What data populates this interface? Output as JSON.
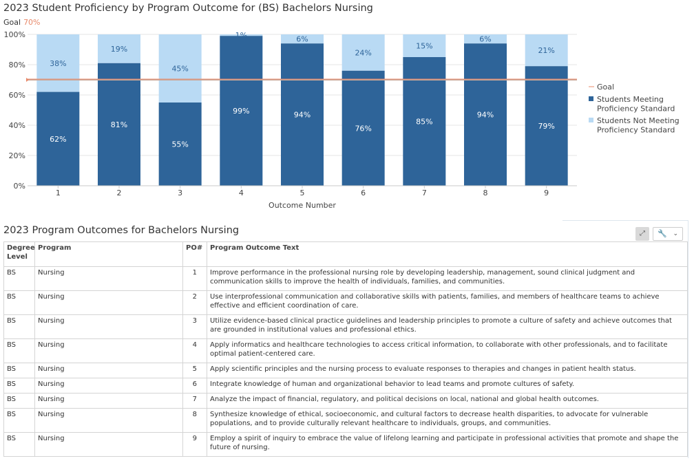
{
  "chart": {
    "title": "2023 Student Proficiency by Program Outcome for (BS) Bachelors Nursing",
    "goal_caption_label": "Goal",
    "goal_caption_value": "70%",
    "colors": {
      "meeting": "#2e6499",
      "not_meeting": "#b9daf4",
      "goal": "#e8896a",
      "grid": "#e6e6e6"
    }
  },
  "chart_data": {
    "type": "bar",
    "stacked": true,
    "categories": [
      "1",
      "2",
      "3",
      "4",
      "5",
      "6",
      "7",
      "8",
      "9"
    ],
    "series": [
      {
        "name": "Students Meeting Proficiency Standard",
        "values": [
          62,
          81,
          55,
          99,
          94,
          76,
          85,
          94,
          79
        ],
        "labels": [
          "62%",
          "81%",
          "55%",
          "99%",
          "94%",
          "76%",
          "85%",
          "94%",
          "79%"
        ]
      },
      {
        "name": "Students Not Meeting Proficiency Standard",
        "values": [
          38,
          19,
          45,
          1,
          6,
          24,
          15,
          6,
          21
        ],
        "labels": [
          "38%",
          "19%",
          "45%",
          "1%",
          "6%",
          "24%",
          "15%",
          "6%",
          "21%"
        ]
      }
    ],
    "goal": {
      "name": "Goal",
      "value": 70
    },
    "xlabel": "Outcome Number",
    "ylabel": "",
    "ylim": [
      0,
      100
    ],
    "yticks": [
      0,
      20,
      40,
      60,
      80,
      100
    ],
    "ytick_labels": [
      "0%",
      "20%",
      "40%",
      "60%",
      "80%",
      "100%"
    ],
    "legend_items": [
      {
        "key": "goal",
        "lines": [
          "Goal"
        ]
      },
      {
        "key": "meeting",
        "lines": [
          "Students Meeting",
          "Proficiency Standard"
        ]
      },
      {
        "key": "not_meeting",
        "lines": [
          "Students Not Meeting",
          "Proficiency Standard"
        ]
      }
    ],
    "legend_position": "right",
    "grid": true
  },
  "table": {
    "title": "2023 Program Outcomes for Bachelors Nursing",
    "tools": {
      "expand_icon": "⤢",
      "wrench_icon": "🔧",
      "chevron_icon": "⌄"
    },
    "headers": {
      "degree": "Degree Level",
      "program": "Program",
      "po": "PO#",
      "text": "Program Outcome Text"
    },
    "rows": [
      {
        "degree": "BS",
        "program": "Nursing",
        "po": "1",
        "text": "Improve performance in the professional nursing role by developing leadership, management, sound clinical judgment and communication skills to improve the health of individuals, families, and communities."
      },
      {
        "degree": "BS",
        "program": "Nursing",
        "po": "2",
        "text": "Use interprofessional communication and collaborative skills with patients, families, and members of healthcare teams to achieve effective and efficient coordination of care."
      },
      {
        "degree": "BS",
        "program": "Nursing",
        "po": "3",
        "text": "Utilize evidence-based clinical practice guidelines and leadership principles to promote a culture of safety and achieve outcomes that are grounded in institutional values and professional ethics."
      },
      {
        "degree": "BS",
        "program": "Nursing",
        "po": "4",
        "text": "Apply informatics and healthcare technologies to access critical information, to collaborate with other professionals, and to facilitate optimal patient-centered care."
      },
      {
        "degree": "BS",
        "program": "Nursing",
        "po": "5",
        "text": "Apply scientific principles and the nursing process to evaluate responses to therapies and changes in patient health status."
      },
      {
        "degree": "BS",
        "program": "Nursing",
        "po": "6",
        "text": "Integrate knowledge of human and organizational behavior to lead teams and promote cultures of safety."
      },
      {
        "degree": "BS",
        "program": "Nursing",
        "po": "7",
        "text": "Analyze the impact of financial, regulatory, and political decisions on local, national and global health outcomes."
      },
      {
        "degree": "BS",
        "program": "Nursing",
        "po": "8",
        "text": "Synthesize knowledge of ethical, socioeconomic, and cultural factors to decrease health disparities, to advocate for vulnerable populations, and to provide culturally relevant healthcare to individuals, groups, and communities."
      },
      {
        "degree": "BS",
        "program": "Nursing",
        "po": "9",
        "text": "Employ a spirit of inquiry to embrace the value of lifelong learning and participate in professional activities that promote and shape the future of nursing."
      }
    ]
  }
}
